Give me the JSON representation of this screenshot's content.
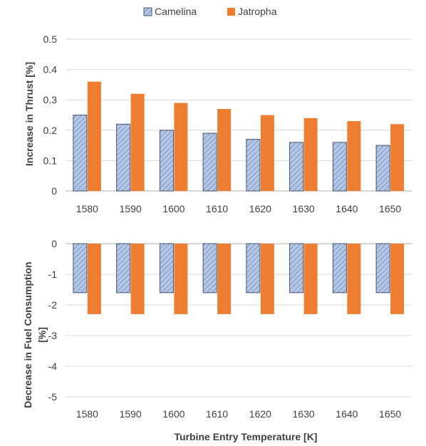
{
  "colors": {
    "camelina_fill": "#b4c7e7",
    "camelina_hatch": "#7f96bf",
    "camelina_edge": "#44546a",
    "jatropha": "#ed7d31",
    "grid": "#d9d9d9",
    "axis": "#bfbfbf"
  },
  "chart_data": [
    {
      "type": "bar",
      "categories": [
        "1580",
        "1590",
        "1600",
        "1610",
        "1620",
        "1630",
        "1640",
        "1650"
      ],
      "series": [
        {
          "name": "Camelina",
          "values": [
            0.25,
            0.22,
            0.2,
            0.19,
            0.17,
            0.16,
            0.16,
            0.15
          ]
        },
        {
          "name": "Jatropha",
          "values": [
            0.36,
            0.32,
            0.29,
            0.27,
            0.25,
            0.24,
            0.23,
            0.22
          ]
        }
      ],
      "ylabel": "Increase in Thrust [%]",
      "ylim": [
        0,
        0.5
      ],
      "yticks": [
        "0",
        "0.1",
        "0.2",
        "0.3",
        "0.4",
        "0.5"
      ],
      "grid": true,
      "legend": "top"
    },
    {
      "type": "bar",
      "categories": [
        "1580",
        "1590",
        "1600",
        "1610",
        "1620",
        "1630",
        "1640",
        "1650"
      ],
      "series": [
        {
          "name": "Camelina",
          "values": [
            -1.6,
            -1.6,
            -1.6,
            -1.6,
            -1.6,
            -1.6,
            -1.6,
            -1.6
          ]
        },
        {
          "name": "Jatropha",
          "values": [
            -2.3,
            -2.3,
            -2.3,
            -2.3,
            -2.3,
            -2.3,
            -2.3,
            -2.3
          ]
        }
      ],
      "ylabel_lines": [
        "Decrease in Fuel Consumption",
        "[%]"
      ],
      "xlabel": "Turbine Entry Temperature [K]",
      "ylim": [
        -5,
        0
      ],
      "yticks": [
        "0",
        "-1",
        "-2",
        "-3",
        "-4",
        "-5"
      ],
      "grid": true
    }
  ]
}
